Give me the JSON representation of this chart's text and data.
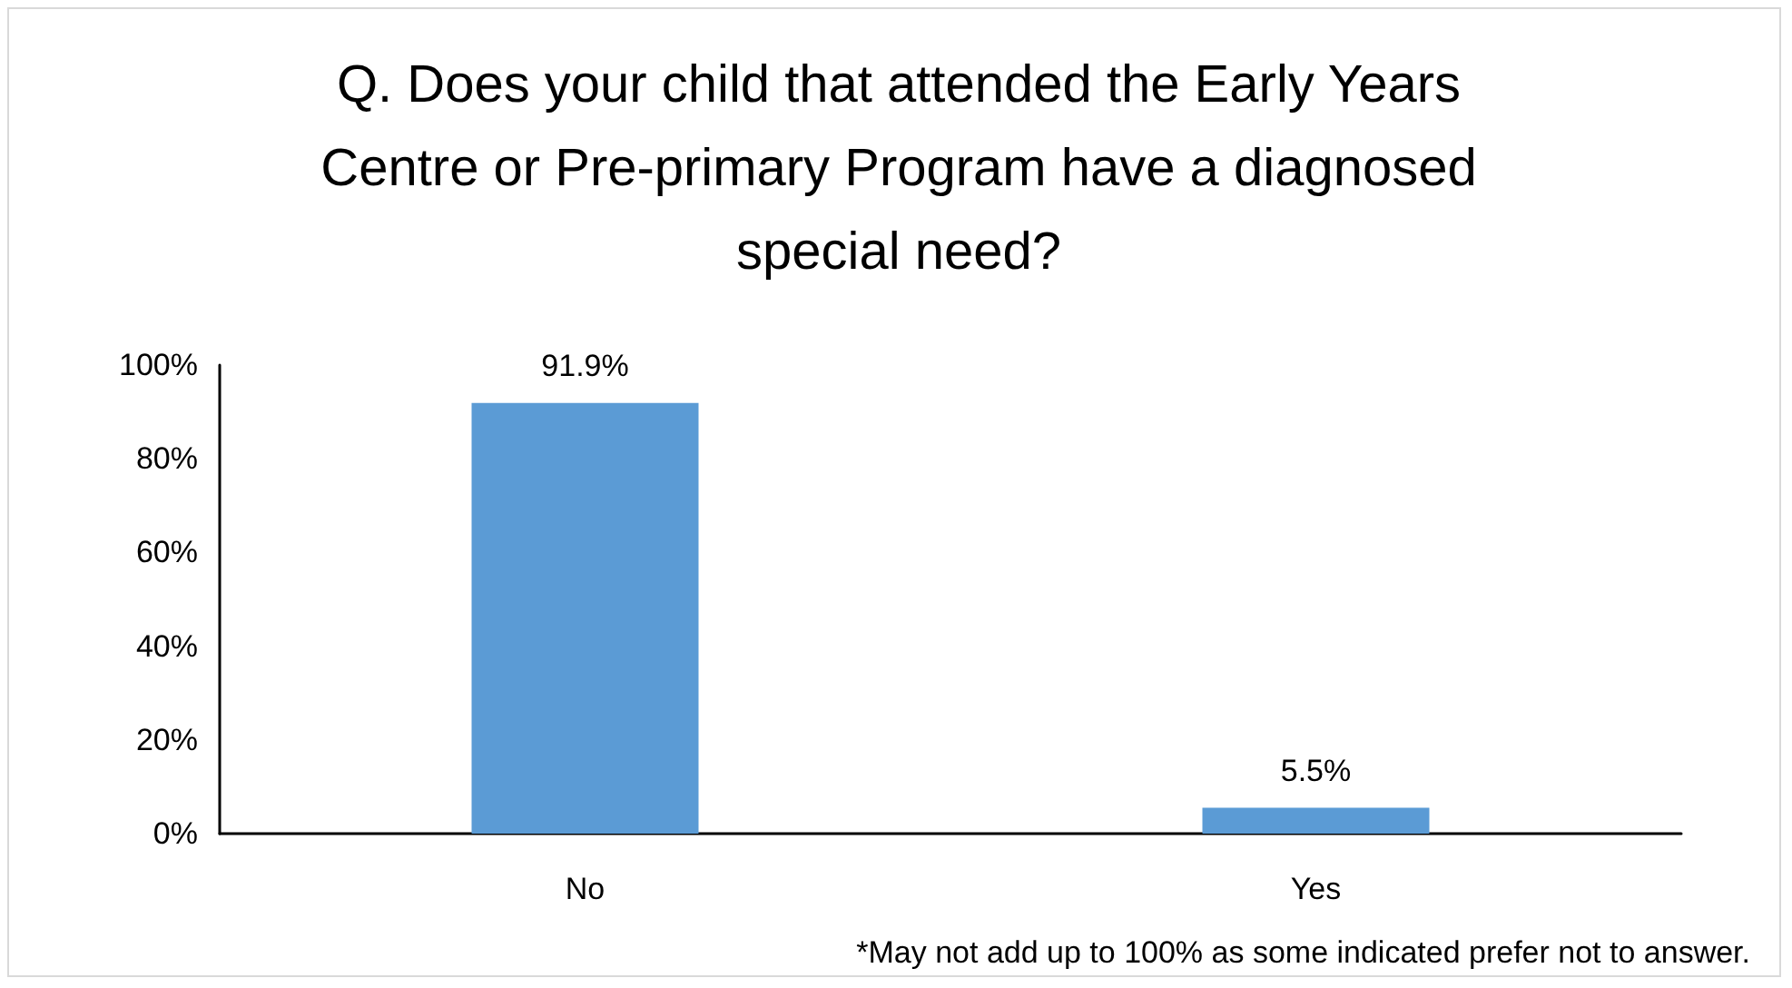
{
  "chart_data": {
    "type": "bar",
    "title": "Q. Does your child that attended the Early Years Centre or Pre-primary Program have a diagnosed special need?",
    "categories": [
      "No",
      "Yes"
    ],
    "values": [
      91.9,
      5.5
    ],
    "value_labels": [
      "91.9%",
      "5.5%"
    ],
    "color": "#5b9bd5",
    "ylim": [
      0,
      100
    ],
    "yticks": [
      {
        "value": 0,
        "label": "0%"
      },
      {
        "value": 20,
        "label": "20%"
      },
      {
        "value": 40,
        "label": "40%"
      },
      {
        "value": 60,
        "label": "60%"
      },
      {
        "value": 80,
        "label": "80%"
      },
      {
        "value": 100,
        "label": "100%"
      }
    ],
    "grid": false,
    "annotations": [
      "*May not add up to 100% as some indicated prefer not to answer."
    ]
  }
}
